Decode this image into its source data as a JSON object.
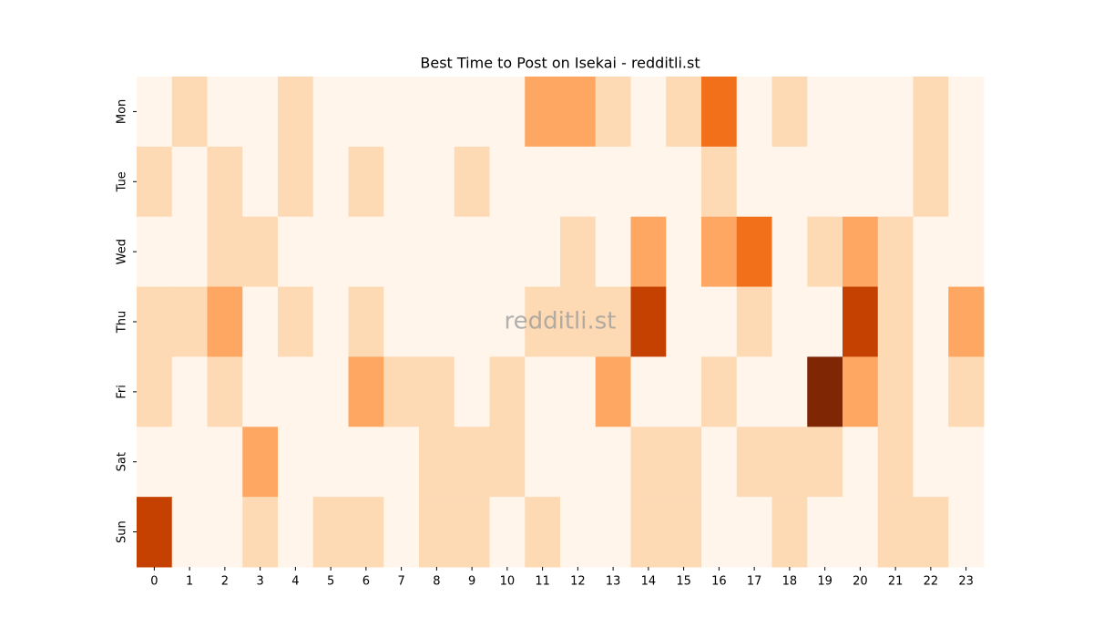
{
  "chart_data": {
    "type": "heatmap",
    "title": "Best Time to Post on Isekai - redditli.st",
    "watermark": "redditli.st",
    "categories": [
      0,
      1,
      2,
      3,
      4,
      5,
      6,
      7,
      8,
      9,
      10,
      11,
      12,
      13,
      14,
      15,
      16,
      17,
      18,
      19,
      20,
      21,
      22,
      23
    ],
    "rows": [
      "Mon",
      "Tue",
      "Wed",
      "Thu",
      "Fri",
      "Sat",
      "Sun"
    ],
    "values": [
      [
        0,
        1,
        0,
        0,
        1,
        0,
        0,
        0,
        0,
        0,
        0,
        2,
        2,
        1,
        0,
        1,
        3,
        0,
        1,
        0,
        0,
        0,
        1,
        0
      ],
      [
        1,
        0,
        1,
        0,
        1,
        0,
        1,
        0,
        0,
        1,
        0,
        0,
        0,
        0,
        0,
        0,
        1,
        0,
        0,
        0,
        0,
        0,
        1,
        0
      ],
      [
        0,
        0,
        1,
        1,
        0,
        0,
        0,
        0,
        0,
        0,
        0,
        0,
        1,
        0,
        2,
        0,
        2,
        3,
        0,
        1,
        2,
        1,
        0,
        0
      ],
      [
        1,
        1,
        2,
        0,
        1,
        0,
        1,
        0,
        0,
        0,
        0,
        1,
        1,
        1,
        4,
        0,
        0,
        1,
        0,
        0,
        4,
        1,
        0,
        2
      ],
      [
        1,
        0,
        1,
        0,
        0,
        0,
        2,
        1,
        1,
        0,
        1,
        0,
        0,
        2,
        0,
        0,
        1,
        0,
        0,
        5,
        2,
        1,
        0,
        1
      ],
      [
        0,
        0,
        0,
        2,
        0,
        0,
        0,
        0,
        1,
        1,
        1,
        0,
        0,
        0,
        1,
        1,
        0,
        1,
        1,
        1,
        0,
        1,
        0,
        0
      ],
      [
        4,
        0,
        0,
        1,
        0,
        1,
        1,
        0,
        1,
        1,
        0,
        1,
        0,
        0,
        1,
        1,
        0,
        0,
        1,
        0,
        0,
        1,
        1,
        0
      ]
    ],
    "colors": [
      "#fff5eb",
      "#fdd9b4",
      "#fda762",
      "#f3701b",
      "#c54102",
      "#7f2704"
    ]
  }
}
